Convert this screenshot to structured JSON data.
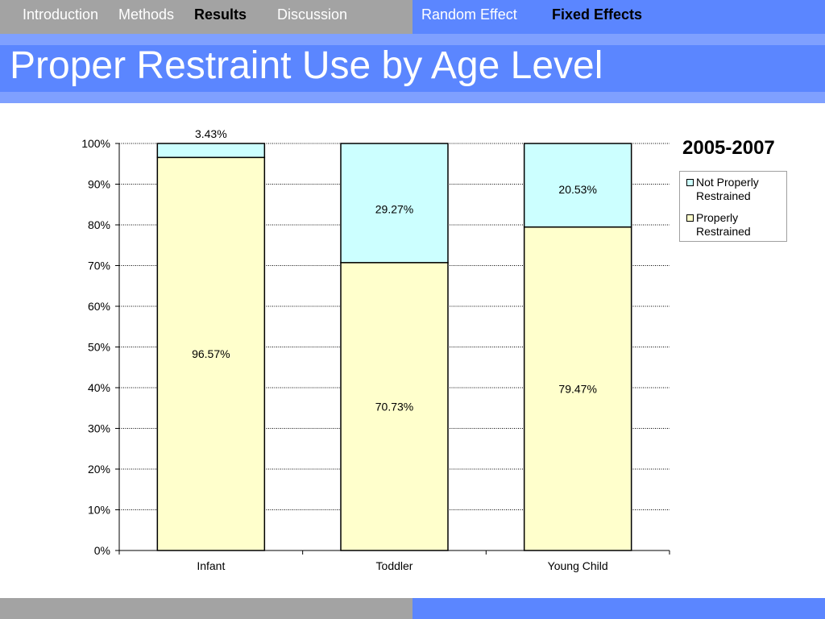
{
  "nav": {
    "left_items": [
      "Introduction",
      "Methods",
      "Results",
      "Discussion"
    ],
    "right_items": [
      "Random Effect",
      "Fixed Effects"
    ],
    "active_left": "Results",
    "active_right": "Fixed Effects"
  },
  "page_title": "Proper Restraint Use by Age Level",
  "colors": {
    "nav_gray": "#a3a3a3",
    "nav_blue": "#5b86ff",
    "properly_restrained": "#ffffcc",
    "not_properly_restrained": "#ccffff"
  },
  "chart_data": {
    "type": "bar",
    "stacked": true,
    "percent": true,
    "title": "2005-2007",
    "categories": [
      "Infant",
      "Toddler",
      "Young Child"
    ],
    "series": [
      {
        "name": "Properly Restrained",
        "values": [
          96.57,
          70.73,
          79.47
        ],
        "labels": [
          "96.57%",
          "70.73%",
          "79.47%"
        ]
      },
      {
        "name": "Not Properly Restrained",
        "values": [
          3.43,
          29.27,
          20.53
        ],
        "labels": [
          "3.43%",
          "29.27%",
          "20.53%"
        ]
      }
    ],
    "legend_order": [
      "Not Properly Restrained",
      "Properly Restrained"
    ],
    "legend_text": [
      [
        "Not Properly",
        "Restrained"
      ],
      [
        "Properly",
        "Restrained"
      ]
    ],
    "ylim": [
      0,
      100
    ],
    "yticks": [
      "0%",
      "10%",
      "20%",
      "30%",
      "40%",
      "50%",
      "60%",
      "70%",
      "80%",
      "90%",
      "100%"
    ],
    "grid": true,
    "legend_position": "right"
  }
}
